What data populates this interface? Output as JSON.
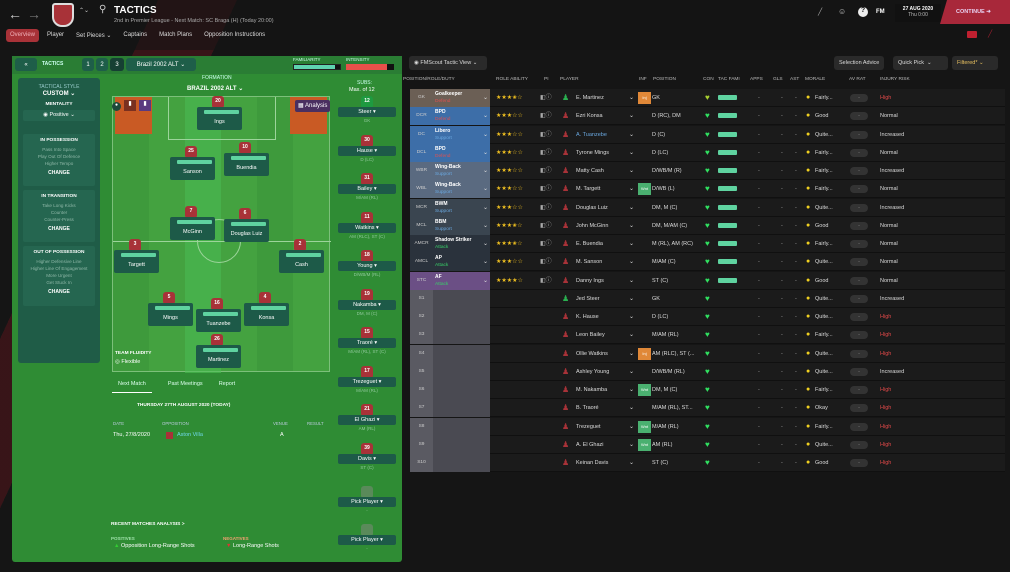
{
  "header": {
    "title": "TACTICS",
    "subtitle": "2nd in Premier League - Next Match: SC Braga (H) (Today 20:00)",
    "date": "27 AUG 2020",
    "time": "Thu 0:00",
    "fm": "FM",
    "continue": "CONTINUE"
  },
  "tabs": [
    "Overview",
    "Player",
    "Set Pieces",
    "Captains",
    "Match Plans",
    "Opposition Instructions"
  ],
  "panel": {
    "tactics_label": "TACTICS",
    "slots": [
      "1",
      "2",
      "3"
    ],
    "tactic_name": "Brazil 2002 ALT",
    "familiarity": "FAMILIARITY",
    "intensity": "INTENSITY",
    "familiarity_value": 0.9,
    "intensity_value": 0.85,
    "formation_label": "FORMATION",
    "formation": "BRAZIL 2002 ALT",
    "subs_label": "SUBS:",
    "subs_max": "Max. of 12",
    "analysis": "Analysis",
    "fluidity_label": "TEAM FLUIDITY",
    "fluidity": "Flexible"
  },
  "tactical": {
    "style_label": "TACTICAL STYLE",
    "style": "CUSTOM",
    "mentality_label": "MENTALITY",
    "mentality": "Positive",
    "change": "CHANGE",
    "boxes": [
      {
        "title": "IN POSSESSION",
        "items": [
          "Pass Into Space",
          "Play Out Of Defence",
          "Higher Tempo"
        ]
      },
      {
        "title": "IN TRANSITION",
        "items": [
          "Take Long Kicks",
          "Counter",
          "Counter-Press"
        ]
      },
      {
        "title": "OUT OF POSSESSION",
        "items": [
          "Higher Defensive Line",
          "Higher Line Of Engagement",
          "More Urgent",
          "Get Stuck In"
        ]
      }
    ]
  },
  "pitch": [
    {
      "n": "20",
      "name": "Ings"
    },
    {
      "n": "25",
      "name": "Sanson"
    },
    {
      "n": "10",
      "name": "Buendia"
    },
    {
      "n": "7",
      "name": "McGinn"
    },
    {
      "n": "6",
      "name": "Douglas Luiz"
    },
    {
      "n": "3",
      "name": "Targett"
    },
    {
      "n": "2",
      "name": "Cash"
    },
    {
      "n": "5",
      "name": "Mings"
    },
    {
      "n": "16",
      "name": "Tuanzebe"
    },
    {
      "n": "4",
      "name": "Konsa"
    },
    {
      "n": "26",
      "name": "Martinez"
    }
  ],
  "subs": [
    {
      "n": "12",
      "name": "Steer",
      "pos": "GK"
    },
    {
      "n": "30",
      "name": "Hause",
      "pos": "D (LC)"
    },
    {
      "n": "31",
      "name": "Bailey",
      "pos": "M/AM (RL)"
    },
    {
      "n": "11",
      "name": "Watkins",
      "pos": "AM (RLC), ST (C)"
    },
    {
      "n": "18",
      "name": "Young",
      "pos": "D/WB/M (RL)"
    },
    {
      "n": "19",
      "name": "Nakamba",
      "pos": "DM, M (C)"
    },
    {
      "n": "15",
      "name": "Traoré",
      "pos": "M/AM (RL), ST (C)"
    },
    {
      "n": "17",
      "name": "Trezeguet",
      "pos": "M/AM (RL)"
    },
    {
      "n": "21",
      "name": "El Ghazi",
      "pos": "AM (RL)"
    },
    {
      "n": "39",
      "name": "Davis",
      "pos": "ST (C)"
    },
    {
      "n": "",
      "name": "Pick Player",
      "pos": "-"
    },
    {
      "n": "",
      "name": "Pick Player",
      "pos": "-"
    }
  ],
  "match": {
    "tabs": [
      "Next Match",
      "Past Meetings",
      "Report"
    ],
    "date_heading": "THURSDAY 27TH AUGUST 2020 (TODAY)",
    "cols": [
      "DATE",
      "OPPOSITION",
      "VENUE",
      "RESULT"
    ],
    "date": "Thu, 27/8/2020",
    "opposition": "Aston Villa",
    "venue": "A",
    "analysis": "RECENT MATCHES ANALYSIS >",
    "positives_label": "POSITIVES",
    "negatives_label": "NEGATIVES",
    "positive": "Opposition Long-Range Shots",
    "negative": "Long-Range Shots"
  },
  "table": {
    "view": "FMScout Tactic View",
    "selection_advice": "Selection Advice",
    "quick_pick": "Quick Pick",
    "filtered": "Filtered*",
    "headers": [
      "POSITION/ROLE/DUTY",
      "ROLE ABILITY",
      "PI",
      "PLAYER",
      "INF",
      "POSITION",
      "CON",
      "TAC FAMI",
      "APPS",
      "GLS",
      "AST",
      "MORALE",
      "AV RAT",
      "INJURY RISK"
    ],
    "rows": [
      [
        "GK",
        "Goalkeeper",
        "Defend",
        3.5,
        "E. Martinez",
        "g",
        "Inj",
        "GK",
        "Fairly...",
        "High"
      ],
      [
        "DCR",
        "BPD",
        "Defend",
        3,
        "Ezri Konsa",
        "r",
        "",
        "D (RC), DM",
        "Good",
        "Normal"
      ],
      [
        "DC",
        "Libero",
        "Support",
        3,
        "A. Tuanzebe",
        "r",
        "",
        "D (C)",
        "Quite...",
        "Increased"
      ],
      [
        "DCL",
        "BPD",
        "Defend",
        3,
        "Tyrone Mings",
        "r",
        "",
        "D (LC)",
        "Fairly...",
        "Normal"
      ],
      [
        "WBR",
        "Wing-Back",
        "Support",
        3,
        "Matty Cash",
        "r",
        "",
        "D/WB/M (R)",
        "Fairly...",
        "Increased"
      ],
      [
        "WBL",
        "Wing-Back",
        "Support",
        3,
        "M. Targett",
        "r",
        "Wnt",
        "D/WB (L)",
        "Fairly...",
        "Normal"
      ],
      [
        "MCR",
        "BWM",
        "Support",
        3,
        "Douglas Luiz",
        "r",
        "",
        "DM, M (C)",
        "Quite...",
        "Increased"
      ],
      [
        "MCL",
        "BBM",
        "Support",
        3.5,
        "John McGinn",
        "r",
        "",
        "DM, M/AM (C)",
        "Good",
        "Normal"
      ],
      [
        "AMCR",
        "Shadow Striker",
        "Attack",
        3.5,
        "E. Buendia",
        "r",
        "",
        "M (RL), AM (RC)",
        "Fairly...",
        "Normal"
      ],
      [
        "AMCL",
        "AP",
        "Attack",
        3,
        "M. Sanson",
        "r",
        "",
        "M/AM (C)",
        "Quite...",
        "Normal"
      ],
      [
        "STC",
        "AF",
        "Attack",
        4,
        "Danny Ings",
        "r",
        "",
        "ST (C)",
        "Good",
        "Normal"
      ],
      [
        "S1",
        "",
        "",
        0,
        "Jed Steer",
        "g",
        "",
        "GK",
        "Quite...",
        "Increased"
      ],
      [
        "S2",
        "",
        "",
        0,
        "K. Hause",
        "r",
        "",
        "D (LC)",
        "Quite...",
        "High"
      ],
      [
        "S3",
        "",
        "",
        0,
        "Leon Bailey",
        "r",
        "",
        "M/AM (RL)",
        "Fairly...",
        "High"
      ],
      [
        "S4",
        "",
        "",
        0,
        "Ollie Watkins",
        "r",
        "Inj",
        "AM (RLC), ST (...",
        "Quite...",
        "High"
      ],
      [
        "S5",
        "",
        "",
        0,
        "Ashley Young",
        "r",
        "",
        "D/WB/M (RL)",
        "Quite...",
        "Increased"
      ],
      [
        "S6",
        "",
        "",
        0,
        "M. Nakamba",
        "r",
        "Wnt",
        "DM, M (C)",
        "Fairly...",
        "High"
      ],
      [
        "S7",
        "",
        "",
        0,
        "B. Traoré",
        "r",
        "",
        "M/AM (RL), ST...",
        "Okay",
        "High"
      ],
      [
        "S8",
        "",
        "",
        0,
        "Trezeguet",
        "r",
        "Wnt",
        "M/AM (RL)",
        "Fairly...",
        "High"
      ],
      [
        "S9",
        "",
        "",
        0,
        "A. El Ghazi",
        "r",
        "Wnt",
        "AM (RL)",
        "Quite...",
        "High"
      ],
      [
        "S10",
        "",
        "",
        0,
        "Keinan Davis",
        "r",
        "",
        "ST (C)",
        "Good",
        "High"
      ]
    ],
    "dash": "-"
  },
  "colors": {
    "accent": "#a83238",
    "green": "#2f8c34",
    "high": "#e04848",
    "attack": "#38d068",
    "defend": "#e05050",
    "support": "#6aa8e0"
  }
}
